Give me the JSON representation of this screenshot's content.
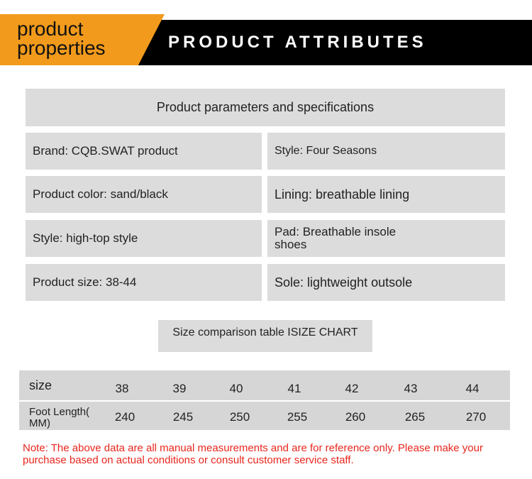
{
  "banner": {
    "tag_line1": "product",
    "tag_line2": "properties",
    "title": "PRODUCT ATTRIBUTES",
    "accent_color": "#f29a1c"
  },
  "specs": {
    "header": "Product parameters and specifications",
    "items": [
      "Brand: CQB.SWAT product",
      "Style: Four Seasons",
      "Product color: sand/black",
      "Lining: breathable lining",
      "Style: high-top style",
      "Pad: Breathable insole shoes",
      "Product size: 38-44",
      "Sole: lightweight outsole"
    ]
  },
  "size_chart": {
    "title": "Size comparison table ISIZE CHART",
    "row1_label": "size",
    "row2_label_line1": "Foot Length(",
    "row2_label_line2": "MM)",
    "sizes": [
      "38",
      "39",
      "40",
      "41",
      "42",
      "43",
      "44"
    ],
    "foot_lengths": [
      "240",
      "245",
      "250",
      "255",
      "260",
      "265",
      "270"
    ]
  },
  "note": "Note: The above data are all manual measurements and are for reference only. Please make your purchase based on actual conditions or consult customer service staff.",
  "note_color": "#e8261d"
}
